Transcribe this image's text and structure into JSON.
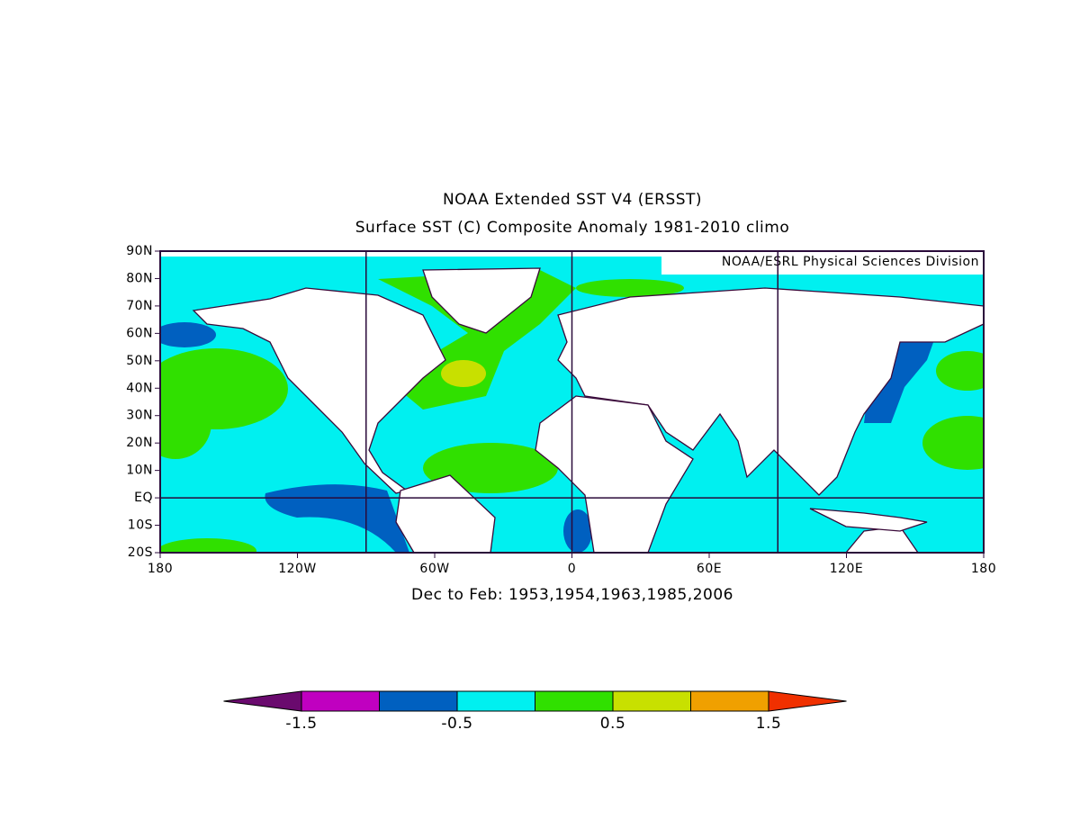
{
  "map": {
    "title": "NOAA Extended SST V4 (ERSST)",
    "subtitle": "Surface SST (C) Composite Anomaly 1981-2010 climo",
    "credit": "NOAA/ESRL Physical Sciences Division",
    "caption": "Dec to Feb: 1953,1954,1963,1985,2006",
    "xlim": [
      -180,
      180
    ],
    "ylim": [
      -20,
      90
    ],
    "xticks": [
      {
        "value": -180,
        "label": "180"
      },
      {
        "value": -120,
        "label": "120W"
      },
      {
        "value": -60,
        "label": "60W"
      },
      0,
      {
        "value": 60,
        "label": "60E"
      },
      {
        "value": 120,
        "label": "120E"
      },
      {
        "value": 180,
        "label": "180"
      }
    ],
    "yticks": [
      {
        "value": 90,
        "label": "90N"
      },
      {
        "value": 80,
        "label": "80N"
      },
      {
        "value": 70,
        "label": "70N"
      },
      {
        "value": 60,
        "label": "60N"
      },
      {
        "value": 50,
        "label": "50N"
      },
      {
        "value": 40,
        "label": "40N"
      },
      {
        "value": 30,
        "label": "30N"
      },
      {
        "value": 20,
        "label": "20N"
      },
      {
        "value": 10,
        "label": "10N"
      },
      {
        "value": 0,
        "label": "EQ"
      },
      {
        "value": -10,
        "label": "10S"
      },
      {
        "value": -20,
        "label": "20S"
      }
    ],
    "grid_lon": [
      -90,
      0,
      90
    ],
    "grid_lat": [
      0
    ]
  },
  "colorbar": {
    "levels": [
      -1.5,
      -1,
      -0.5,
      0,
      0.5,
      1,
      1.5
    ],
    "colors": [
      "#6a0a6e",
      "#c000c0",
      "#0060c0",
      "#00f0f0",
      "#30e000",
      "#c8e000",
      "#f0a000",
      "#f03000"
    ],
    "ticks": [
      -1.5,
      -0.5,
      0.5,
      1.5
    ]
  }
}
